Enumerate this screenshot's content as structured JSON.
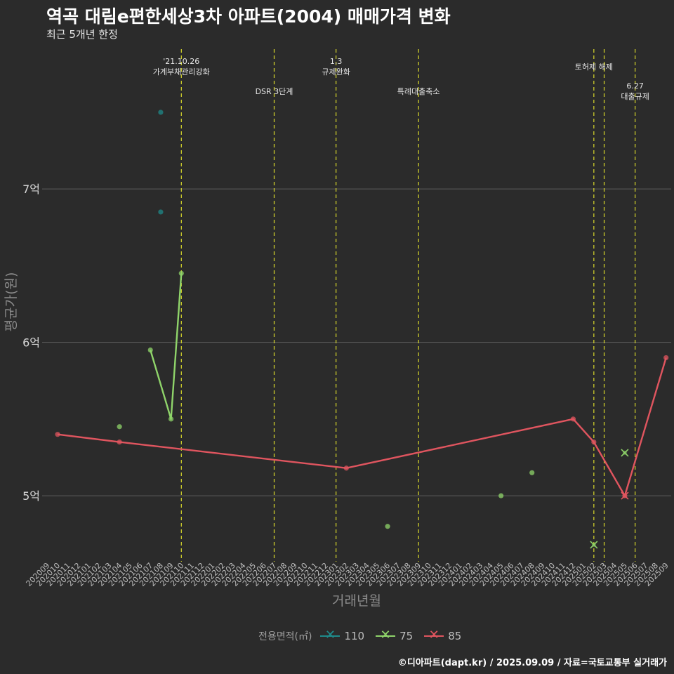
{
  "title": "역곡 대림e편한세상3차 아파트(2004) 매매가격 변화",
  "subtitle": "최근 5개년 한정",
  "caption": "©디아파트(dapt.kr) / 2025.09.09 / 자료=국토교통부 실거래가",
  "legend": {
    "title": "전용면적(㎡)",
    "items": [
      {
        "label": "110",
        "color": "#1f8a8a"
      },
      {
        "label": "75",
        "color": "#8fd46a"
      },
      {
        "label": "85",
        "color": "#e0555f"
      }
    ]
  },
  "chart_data": {
    "type": "line",
    "xlabel": "거래년월",
    "ylabel": "평균가(원)",
    "ylim": [
      4.57,
      7.93
    ],
    "x_categories": [
      "202009",
      "202010",
      "202011",
      "202012",
      "202101",
      "202102",
      "202103",
      "202104",
      "202105",
      "202106",
      "202107",
      "202108",
      "202109",
      "202110",
      "202111",
      "202112",
      "202201",
      "202202",
      "202203",
      "202204",
      "202205",
      "202206",
      "202207",
      "202208",
      "202209",
      "202210",
      "202211",
      "202212",
      "202301",
      "202302",
      "202303",
      "202304",
      "202305",
      "202306",
      "202307",
      "202308",
      "202309",
      "202310",
      "202311",
      "202312",
      "202401",
      "202402",
      "202403",
      "202404",
      "202405",
      "202406",
      "202407",
      "202408",
      "202409",
      "202410",
      "202411",
      "202412",
      "202501",
      "202502",
      "202503",
      "202504",
      "202505",
      "202506",
      "202507",
      "202508",
      "202509"
    ],
    "y_ticks": [
      {
        "value": 5,
        "label": "5억"
      },
      {
        "value": 6,
        "label": "6억"
      },
      {
        "value": 7,
        "label": "7억"
      }
    ],
    "grid": true,
    "legend_position": "bottom",
    "series": [
      {
        "name": "110",
        "color": "#1f8a8a",
        "line": [],
        "points": [
          {
            "x": "202108",
            "y": 7.5
          },
          {
            "x": "202108",
            "y": 6.85
          }
        ],
        "crosses": []
      },
      {
        "name": "75",
        "color": "#8fd46a",
        "line": [
          {
            "x": "202107",
            "y": 5.95
          },
          {
            "x": "202109",
            "y": 5.5
          },
          {
            "x": "202110",
            "y": 6.45
          }
        ],
        "points": [
          {
            "x": "202104",
            "y": 5.45
          },
          {
            "x": "202107",
            "y": 5.95
          },
          {
            "x": "202109",
            "y": 5.5
          },
          {
            "x": "202110",
            "y": 6.45
          },
          {
            "x": "202306",
            "y": 4.8
          },
          {
            "x": "202405",
            "y": 5.0
          },
          {
            "x": "202408",
            "y": 5.15
          }
        ],
        "crosses": [
          {
            "x": "202502",
            "y": 4.68
          },
          {
            "x": "202505",
            "y": 5.28
          }
        ]
      },
      {
        "name": "85",
        "color": "#e0555f",
        "line": [
          {
            "x": "202010",
            "y": 5.4
          },
          {
            "x": "202104",
            "y": 5.35
          },
          {
            "x": "202302",
            "y": 5.18
          },
          {
            "x": "202412",
            "y": 5.5
          },
          {
            "x": "202502",
            "y": 5.35
          },
          {
            "x": "202505",
            "y": 5.0
          },
          {
            "x": "202509",
            "y": 5.9
          }
        ],
        "points": [
          {
            "x": "202010",
            "y": 5.4
          },
          {
            "x": "202104",
            "y": 5.35
          },
          {
            "x": "202302",
            "y": 5.18
          },
          {
            "x": "202412",
            "y": 5.5
          },
          {
            "x": "202502",
            "y": 5.35
          },
          {
            "x": "202505",
            "y": 5.0
          },
          {
            "x": "202509",
            "y": 5.9
          }
        ],
        "crosses": [
          {
            "x": "202505",
            "y": 5.0
          }
        ]
      }
    ],
    "events": [
      {
        "x": "202110",
        "lines": [
          "'21.10.26",
          "가계부채관리강화"
        ],
        "level": 0
      },
      {
        "x": "202207",
        "lines": [
          "DSR 3단계"
        ],
        "level": 2
      },
      {
        "x": "202301",
        "lines": [
          "1.3",
          "규제완화"
        ],
        "level": 0
      },
      {
        "x": "202309",
        "lines": [
          "특례대출축소"
        ],
        "level": 2
      },
      {
        "x": "202502",
        "lines": [
          "토허제 해제"
        ],
        "level": 1
      },
      {
        "x": "202503",
        "lines": [],
        "level": 1
      },
      {
        "x": "202506",
        "lines": [
          "6.27",
          "대출규제"
        ],
        "level": 3
      }
    ]
  }
}
